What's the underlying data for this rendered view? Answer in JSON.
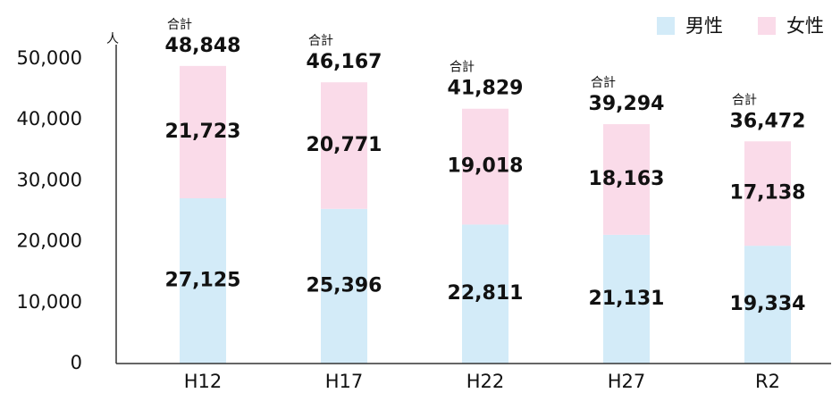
{
  "chart_data": {
    "type": "bar",
    "stacked": true,
    "y_unit": "人",
    "categories": [
      "H12",
      "H17",
      "H22",
      "H27",
      "R2"
    ],
    "series": [
      {
        "name": "男性",
        "color": "#d3ebf8",
        "values": [
          27125,
          25396,
          22811,
          21131,
          19334
        ],
        "value_labels": [
          "27,125",
          "25,396",
          "22,811",
          "21,131",
          "19,334"
        ]
      },
      {
        "name": "女性",
        "color": "#fadbe9",
        "values": [
          21723,
          20771,
          19018,
          18163,
          17138
        ],
        "value_labels": [
          "21,723",
          "20,771",
          "19,018",
          "18,163",
          "17,138"
        ]
      }
    ],
    "totals": {
      "label": "合計",
      "values": [
        48848,
        46167,
        41829,
        39294,
        36472
      ],
      "value_labels": [
        "48,848",
        "46,167",
        "41,829",
        "39,294",
        "36,472"
      ]
    },
    "ylim": [
      0,
      50000
    ],
    "yticks": [
      0,
      {
        "value": 10000,
        "label": "10,000"
      },
      {
        "value": 20000,
        "label": "20,000"
      },
      {
        "value": 30000,
        "label": "30,000"
      },
      {
        "value": 40000,
        "label": "40,000"
      },
      {
        "value": 50000,
        "label": "50,000"
      }
    ],
    "legend": "top-right",
    "grid": false
  }
}
